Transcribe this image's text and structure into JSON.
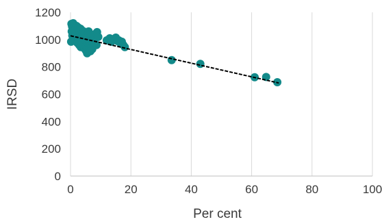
{
  "chart_data": {
    "type": "scatter",
    "title": "",
    "xlabel": "Per cent",
    "ylabel": "IRSD",
    "xlim": [
      0,
      100
    ],
    "ylim": [
      0,
      1200
    ],
    "xticks": [
      0,
      20,
      40,
      60,
      80,
      100
    ],
    "yticks": [
      0,
      200,
      400,
      600,
      800,
      1000,
      1200
    ],
    "grid": "vertical",
    "legend": "none",
    "marker_color": "#138a8a",
    "trendline_color": "#000000",
    "trendline": {
      "x": [
        0,
        69
      ],
      "y": [
        1028,
        682
      ]
    },
    "points": [
      {
        "x": 0.2,
        "y": 985
      },
      {
        "x": 0.3,
        "y": 1115
      },
      {
        "x": 0.4,
        "y": 1060
      },
      {
        "x": 0.5,
        "y": 1098
      },
      {
        "x": 0.6,
        "y": 1030
      },
      {
        "x": 0.7,
        "y": 1080
      },
      {
        "x": 0.8,
        "y": 1010
      },
      {
        "x": 0.9,
        "y": 1120
      },
      {
        "x": 1.0,
        "y": 1045
      },
      {
        "x": 1.1,
        "y": 1090
      },
      {
        "x": 1.2,
        "y": 1000
      },
      {
        "x": 1.3,
        "y": 1070
      },
      {
        "x": 1.4,
        "y": 1105
      },
      {
        "x": 1.5,
        "y": 1025
      },
      {
        "x": 1.6,
        "y": 1060
      },
      {
        "x": 1.7,
        "y": 990
      },
      {
        "x": 1.8,
        "y": 1085
      },
      {
        "x": 1.9,
        "y": 1040
      },
      {
        "x": 2.0,
        "y": 1100
      },
      {
        "x": 2.1,
        "y": 1015
      },
      {
        "x": 2.2,
        "y": 1065
      },
      {
        "x": 2.3,
        "y": 975
      },
      {
        "x": 2.4,
        "y": 1050
      },
      {
        "x": 2.5,
        "y": 1090
      },
      {
        "x": 2.6,
        "y": 1000
      },
      {
        "x": 2.7,
        "y": 1035
      },
      {
        "x": 2.8,
        "y": 1075
      },
      {
        "x": 2.9,
        "y": 960
      },
      {
        "x": 3.0,
        "y": 1020
      },
      {
        "x": 3.1,
        "y": 1060
      },
      {
        "x": 3.2,
        "y": 995
      },
      {
        "x": 3.3,
        "y": 1080
      },
      {
        "x": 3.4,
        "y": 945
      },
      {
        "x": 3.5,
        "y": 1040
      },
      {
        "x": 3.6,
        "y": 1005
      },
      {
        "x": 3.7,
        "y": 1070
      },
      {
        "x": 3.8,
        "y": 970
      },
      {
        "x": 3.9,
        "y": 1030
      },
      {
        "x": 4.0,
        "y": 1050
      },
      {
        "x": 4.1,
        "y": 985
      },
      {
        "x": 4.2,
        "y": 1015
      },
      {
        "x": 4.3,
        "y": 955
      },
      {
        "x": 4.4,
        "y": 1060
      },
      {
        "x": 4.5,
        "y": 1000
      },
      {
        "x": 4.6,
        "y": 935
      },
      {
        "x": 4.7,
        "y": 1025
      },
      {
        "x": 4.8,
        "y": 970
      },
      {
        "x": 4.9,
        "y": 1045
      },
      {
        "x": 5.0,
        "y": 990
      },
      {
        "x": 5.1,
        "y": 920
      },
      {
        "x": 5.2,
        "y": 1010
      },
      {
        "x": 5.3,
        "y": 950
      },
      {
        "x": 5.4,
        "y": 1035
      },
      {
        "x": 5.5,
        "y": 900
      },
      {
        "x": 5.6,
        "y": 975
      },
      {
        "x": 5.7,
        "y": 1020
      },
      {
        "x": 5.8,
        "y": 940
      },
      {
        "x": 5.9,
        "y": 995
      },
      {
        "x": 6.0,
        "y": 1060
      },
      {
        "x": 6.1,
        "y": 960
      },
      {
        "x": 6.2,
        "y": 925
      },
      {
        "x": 6.3,
        "y": 1005
      },
      {
        "x": 6.4,
        "y": 980
      },
      {
        "x": 6.5,
        "y": 1040
      },
      {
        "x": 6.6,
        "y": 915
      },
      {
        "x": 6.7,
        "y": 965
      },
      {
        "x": 6.8,
        "y": 1015
      },
      {
        "x": 6.9,
        "y": 945
      },
      {
        "x": 7.0,
        "y": 990
      },
      {
        "x": 7.2,
        "y": 930
      },
      {
        "x": 7.4,
        "y": 1000
      },
      {
        "x": 7.6,
        "y": 955
      },
      {
        "x": 7.8,
        "y": 1030
      },
      {
        "x": 8.0,
        "y": 975
      },
      {
        "x": 8.2,
        "y": 1010
      },
      {
        "x": 8.4,
        "y": 1045
      },
      {
        "x": 8.6,
        "y": 960
      },
      {
        "x": 8.8,
        "y": 1055
      },
      {
        "x": 9.2,
        "y": 1020
      },
      {
        "x": 12.0,
        "y": 995
      },
      {
        "x": 13.0,
        "y": 1010
      },
      {
        "x": 13.5,
        "y": 985
      },
      {
        "x": 14.0,
        "y": 1000
      },
      {
        "x": 15.0,
        "y": 1015
      },
      {
        "x": 15.5,
        "y": 990
      },
      {
        "x": 16.0,
        "y": 995
      },
      {
        "x": 16.5,
        "y": 975
      },
      {
        "x": 17.0,
        "y": 985
      },
      {
        "x": 17.5,
        "y": 960
      },
      {
        "x": 18.0,
        "y": 945
      },
      {
        "x": 33.5,
        "y": 850
      },
      {
        "x": 43.0,
        "y": 822
      },
      {
        "x": 61.0,
        "y": 724
      },
      {
        "x": 64.8,
        "y": 726
      },
      {
        "x": 68.5,
        "y": 688
      }
    ]
  }
}
